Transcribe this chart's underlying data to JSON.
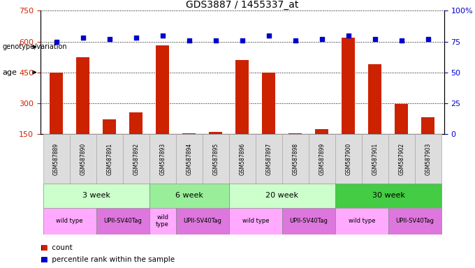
{
  "title": "GDS3887 / 1455337_at",
  "samples": [
    "GSM587889",
    "GSM587890",
    "GSM587891",
    "GSM587892",
    "GSM587893",
    "GSM587894",
    "GSM587895",
    "GSM587896",
    "GSM587897",
    "GSM587898",
    "GSM587899",
    "GSM587900",
    "GSM587901",
    "GSM587902",
    "GSM587903"
  ],
  "counts": [
    450,
    525,
    220,
    255,
    580,
    155,
    160,
    510,
    450,
    155,
    175,
    620,
    490,
    295,
    230
  ],
  "percentile": [
    75,
    78,
    77,
    78,
    80,
    76,
    76,
    76,
    80,
    76,
    77,
    80,
    77,
    76,
    77
  ],
  "ylim_left": [
    150,
    750
  ],
  "ylim_right": [
    0,
    100
  ],
  "yticks_left": [
    150,
    300,
    450,
    600,
    750
  ],
  "yticks_right": [
    0,
    25,
    50,
    75,
    100
  ],
  "bar_color": "#cc2200",
  "dot_color": "#0000cc",
  "left_label_color": "#cc2200",
  "right_label_color": "#0000cc",
  "title_color": "#000000",
  "age_groups": [
    {
      "label": "3 week",
      "start": 0,
      "end": 3,
      "color": "#ccffcc"
    },
    {
      "label": "6 week",
      "start": 4,
      "end": 6,
      "color": "#99ee99"
    },
    {
      "label": "20 week",
      "start": 7,
      "end": 10,
      "color": "#ccffcc"
    },
    {
      "label": "30 week",
      "start": 11,
      "end": 14,
      "color": "#44cc44"
    }
  ],
  "genotype_groups": [
    {
      "label": "wild type",
      "start": 0,
      "end": 1,
      "color": "#ffaaff"
    },
    {
      "label": "UPII-SV40Tag",
      "start": 2,
      "end": 3,
      "color": "#dd77dd"
    },
    {
      "label": "wild\ntype",
      "start": 4,
      "end": 4,
      "color": "#ffaaff"
    },
    {
      "label": "UPII-SV40Tag",
      "start": 5,
      "end": 6,
      "color": "#dd77dd"
    },
    {
      "label": "wild type",
      "start": 7,
      "end": 8,
      "color": "#ffaaff"
    },
    {
      "label": "UPII-SV40Tag",
      "start": 9,
      "end": 10,
      "color": "#dd77dd"
    },
    {
      "label": "wild type",
      "start": 11,
      "end": 12,
      "color": "#ffaaff"
    },
    {
      "label": "UPII-SV40Tag",
      "start": 13,
      "end": 14,
      "color": "#dd77dd"
    }
  ]
}
